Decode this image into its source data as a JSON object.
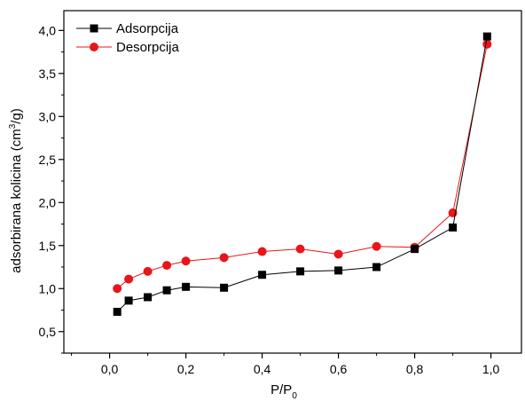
{
  "chart_data": {
    "type": "scatter",
    "xlabel": "P/P",
    "xlabel_subscript": "0",
    "ylabel": "adsorbirana kolicina (cm",
    "ylabel_superscript": "3",
    "ylabel_suffix": "/g)",
    "xlim": [
      -0.12,
      1.08
    ],
    "ylim": [
      0.25,
      4.23
    ],
    "x_ticks": [
      0.0,
      0.2,
      0.4,
      0.6,
      0.8,
      1.0
    ],
    "x_tick_labels": [
      "0,0",
      "0,2",
      "0,4",
      "0,6",
      "0,8",
      "1,0"
    ],
    "y_ticks": [
      0.5,
      1.0,
      1.5,
      2.0,
      2.5,
      3.0,
      3.5,
      4.0
    ],
    "y_tick_labels": [
      "0,5",
      "1,0",
      "1,5",
      "2,0",
      "2,5",
      "3,0",
      "3,5",
      "4,0"
    ],
    "grid": false,
    "legend_position": "top-left",
    "series": [
      {
        "name": "Adsorpcija",
        "color": "#000000",
        "line_color": "#000000",
        "marker": "square",
        "x": [
          0.02,
          0.05,
          0.1,
          0.15,
          0.2,
          0.3,
          0.4,
          0.5,
          0.6,
          0.7,
          0.8,
          0.9,
          0.99
        ],
        "y": [
          0.73,
          0.86,
          0.9,
          0.98,
          1.02,
          1.01,
          1.16,
          1.2,
          1.21,
          1.25,
          1.46,
          1.71,
          3.93
        ]
      },
      {
        "name": "Desorpcija",
        "color": "#e8151b",
        "line_color": "#e8151b",
        "marker": "circle",
        "x": [
          0.02,
          0.05,
          0.1,
          0.15,
          0.2,
          0.3,
          0.4,
          0.5,
          0.6,
          0.7,
          0.8,
          0.9,
          0.99
        ],
        "y": [
          1.0,
          1.11,
          1.2,
          1.27,
          1.32,
          1.36,
          1.43,
          1.46,
          1.4,
          1.49,
          1.48,
          1.88,
          3.84
        ]
      }
    ]
  }
}
